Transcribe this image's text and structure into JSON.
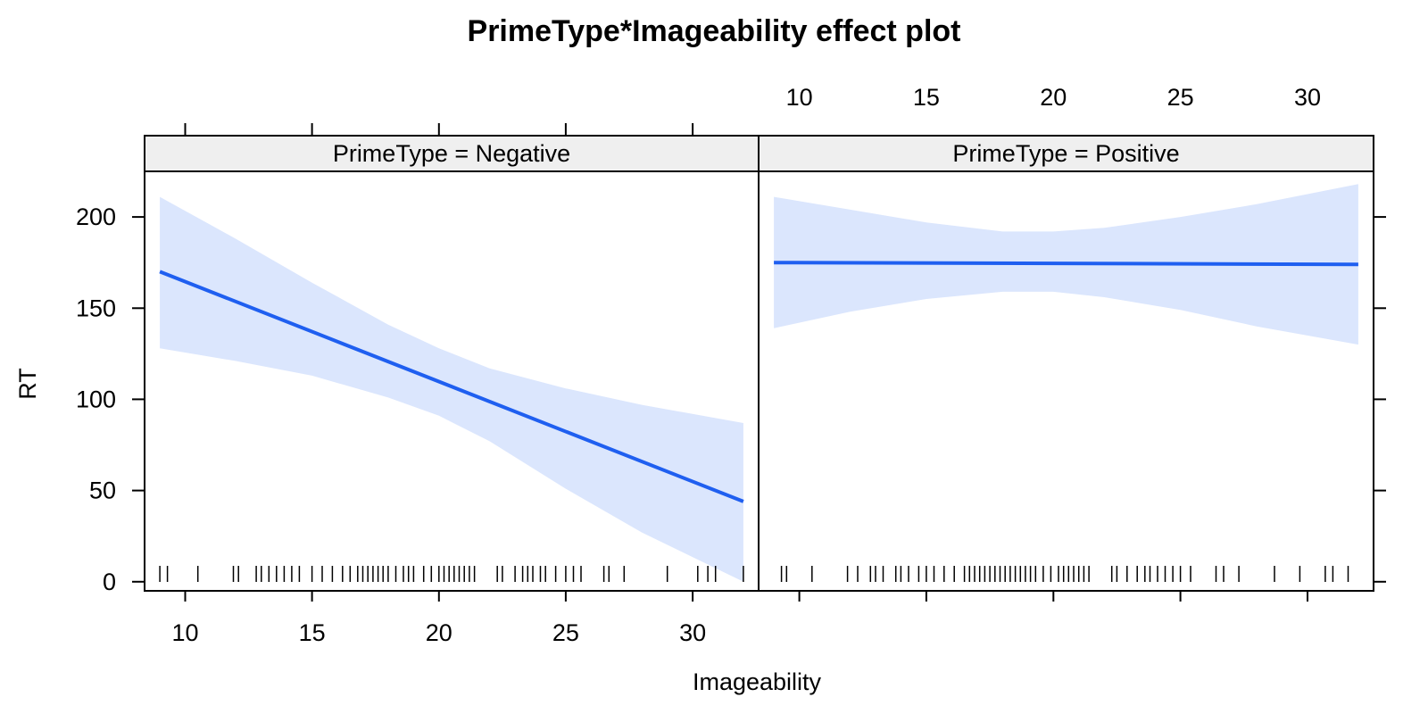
{
  "chart_data": {
    "type": "line",
    "title": "PrimeType*Imageability effect plot",
    "xlabel": "Imageability",
    "ylabel": "RT",
    "xlim": [
      8.4,
      32.6
    ],
    "ylim": [
      -5,
      225
    ],
    "xticks": [
      10,
      15,
      20,
      25,
      30
    ],
    "yticks": [
      0,
      50,
      100,
      150,
      200
    ],
    "grid": false,
    "legend": "none",
    "colors": {
      "line": "#1f5ff0",
      "band": "#dbe6fd",
      "strip": "#efefef",
      "frame": "#000000"
    },
    "panels": [
      {
        "strip": "PrimeType = Negative",
        "fit": {
          "x": [
            9,
            32
          ],
          "y": [
            170,
            44
          ]
        },
        "band": {
          "x": [
            9,
            12,
            15,
            18,
            20,
            22,
            25,
            28,
            32
          ],
          "lower": [
            128,
            121,
            113,
            101,
            91,
            77,
            51,
            27,
            0
          ],
          "upper": [
            211,
            188,
            164,
            141,
            128,
            117,
            106,
            97,
            87
          ]
        },
        "rug": [
          9.0,
          9.3,
          10.5,
          11.9,
          12.1,
          12.8,
          13.0,
          13.3,
          13.6,
          13.9,
          14.2,
          14.5,
          15.0,
          15.4,
          15.8,
          16.2,
          16.5,
          16.8,
          17.0,
          17.2,
          17.4,
          17.6,
          17.8,
          18.0,
          18.3,
          18.6,
          18.8,
          19.0,
          19.4,
          19.7,
          20.0,
          20.2,
          20.4,
          20.6,
          20.8,
          21.0,
          21.2,
          21.4,
          22.3,
          22.5,
          23.0,
          23.3,
          23.5,
          23.7,
          24.0,
          24.2,
          24.6,
          25.0,
          25.3,
          25.6,
          26.5,
          26.7,
          27.3,
          29.0,
          30.2,
          30.6,
          30.9,
          32.0
        ]
      },
      {
        "strip": "PrimeType = Positive",
        "fit": {
          "x": [
            9,
            32
          ],
          "y": [
            175,
            174
          ]
        },
        "band": {
          "x": [
            9,
            12,
            15,
            18,
            20,
            22,
            25,
            28,
            32
          ],
          "lower": [
            139,
            148,
            155,
            159,
            159,
            156,
            149,
            140,
            130
          ],
          "upper": [
            211,
            204,
            197,
            192,
            192,
            194,
            200,
            207,
            218
          ]
        },
        "rug": [
          9.3,
          9.5,
          10.5,
          11.9,
          12.3,
          12.8,
          13.0,
          13.3,
          13.8,
          14.0,
          14.3,
          14.7,
          15.0,
          15.3,
          15.7,
          16.1,
          16.5,
          16.7,
          16.9,
          17.1,
          17.3,
          17.5,
          17.7,
          17.9,
          18.1,
          18.3,
          18.5,
          18.7,
          18.9,
          19.1,
          19.3,
          19.6,
          19.9,
          20.2,
          20.4,
          20.6,
          20.8,
          21.0,
          21.2,
          21.4,
          22.3,
          22.5,
          22.9,
          23.3,
          23.6,
          23.8,
          24.1,
          24.4,
          24.7,
          25.0,
          25.4,
          26.4,
          26.7,
          27.3,
          28.7,
          29.7,
          30.7,
          31.0,
          31.6
        ]
      }
    ]
  }
}
